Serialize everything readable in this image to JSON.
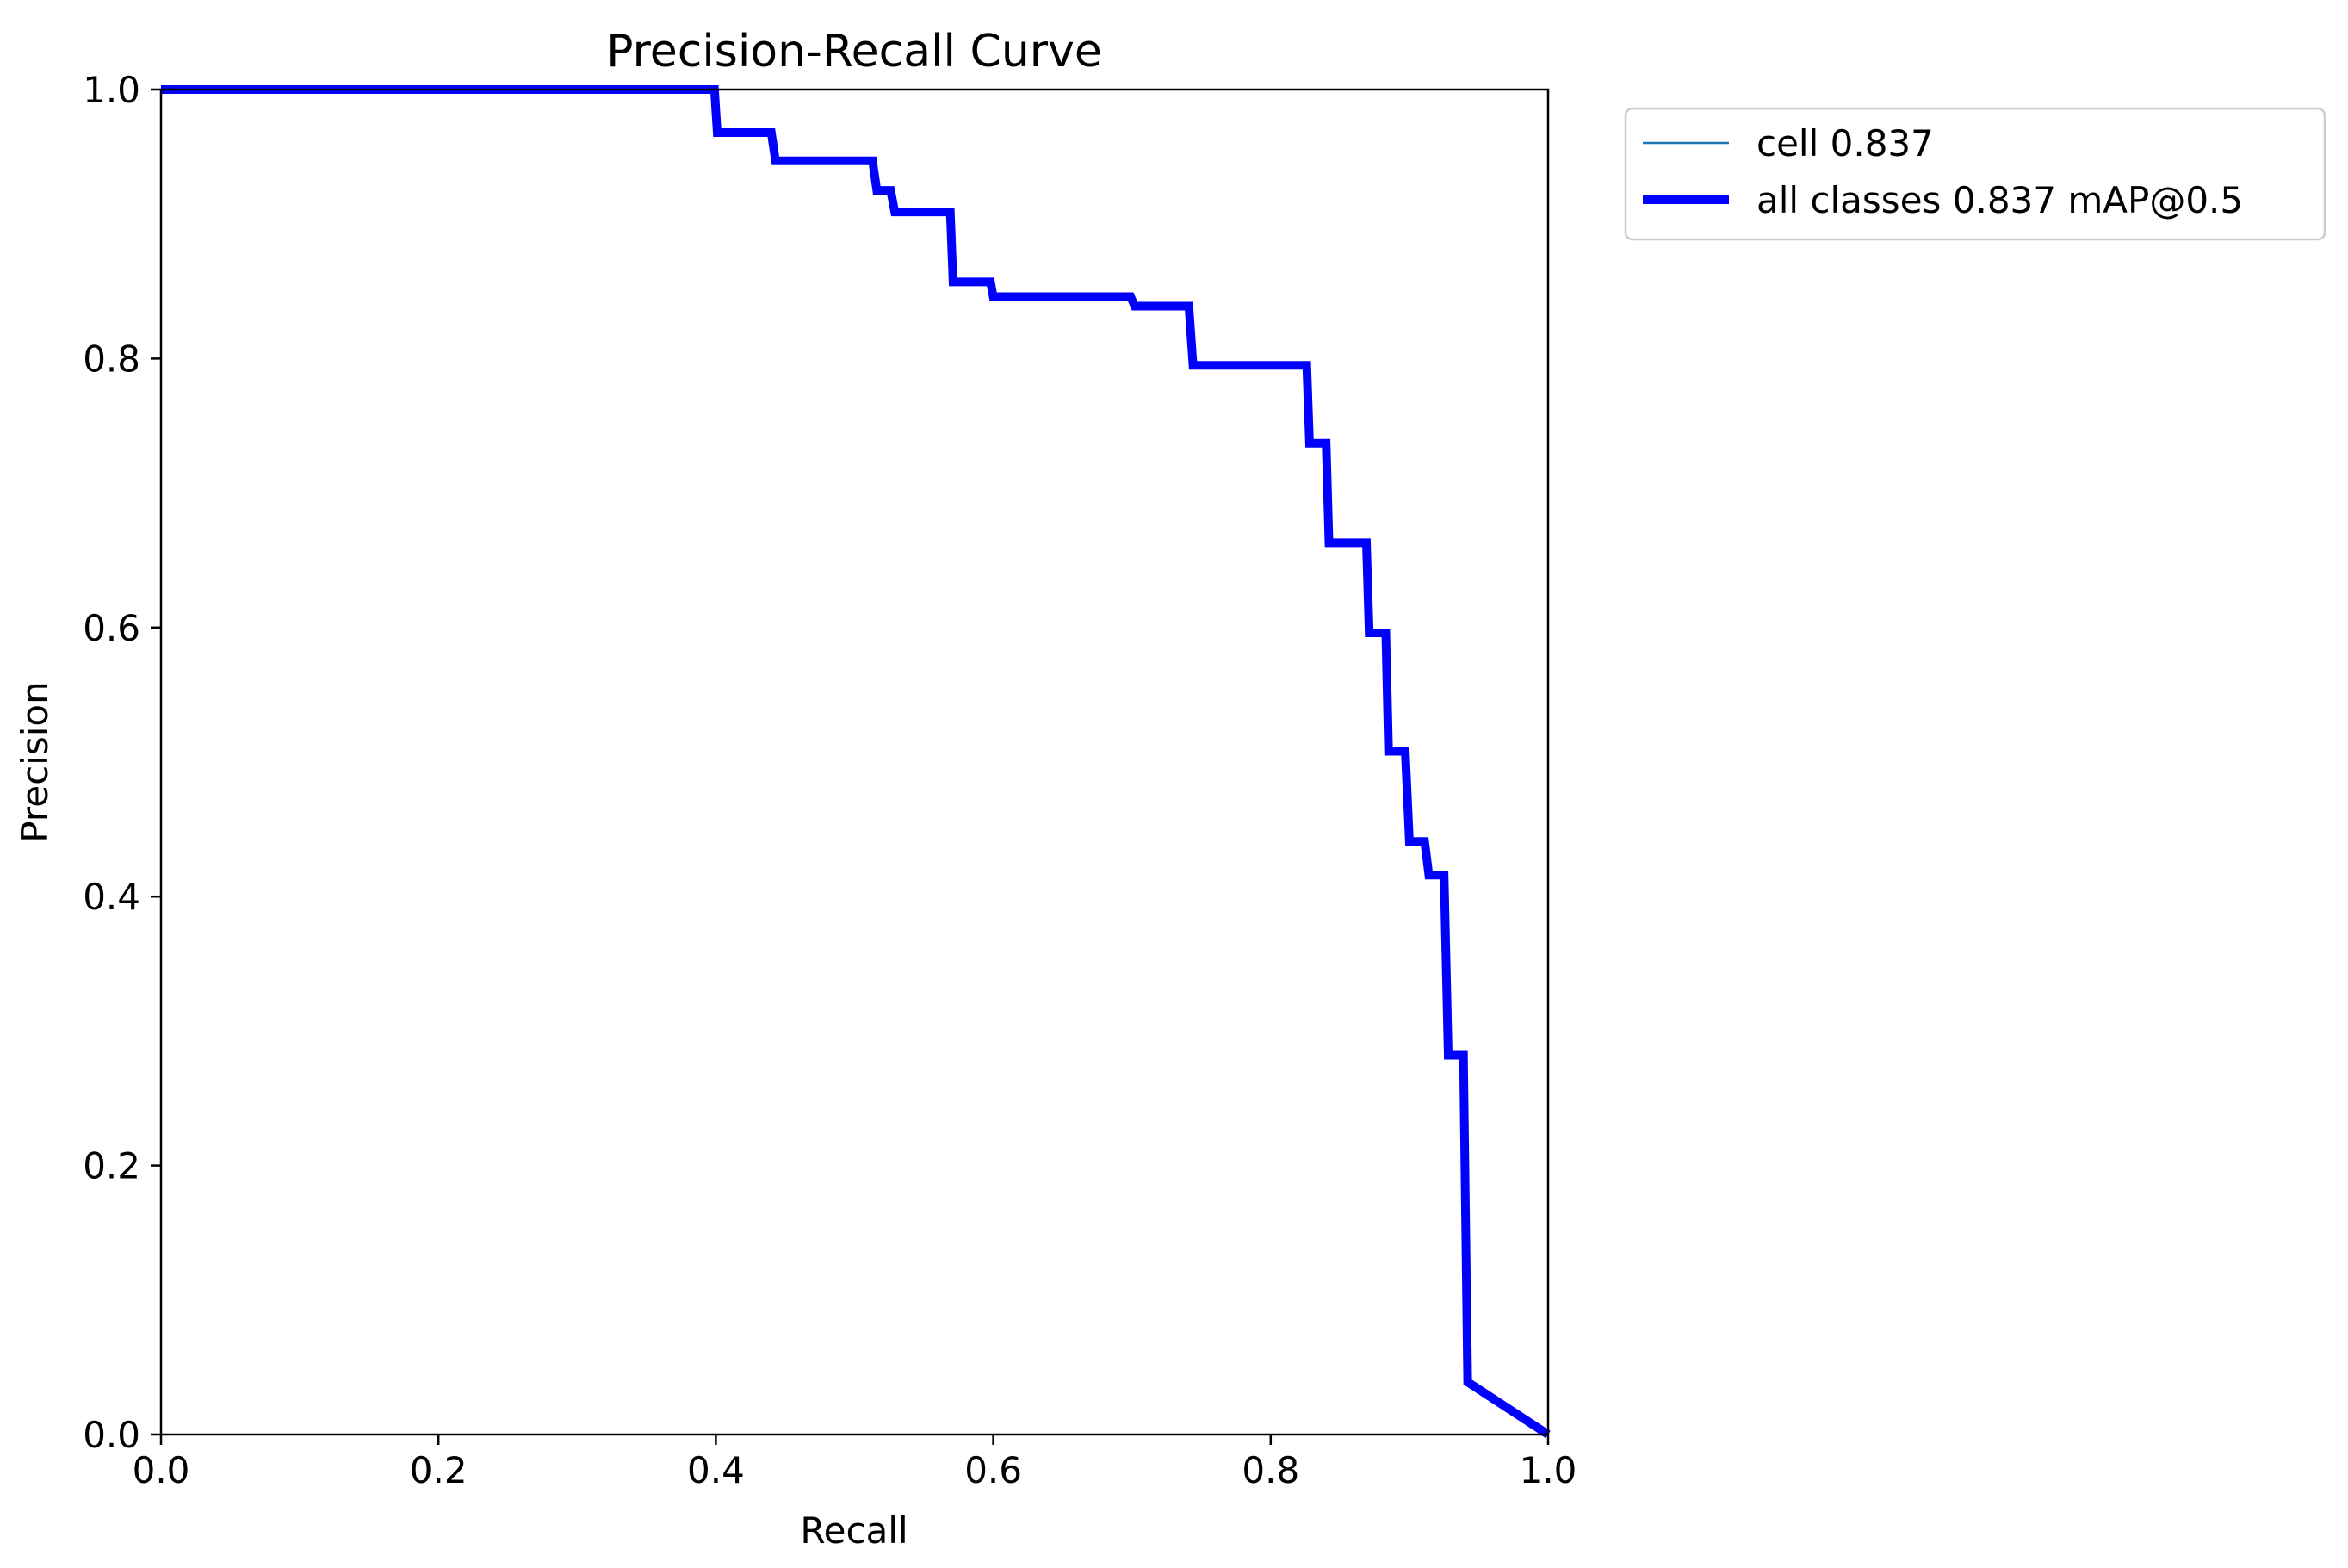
{
  "chart_data": {
    "type": "line",
    "title": "Precision-Recall Curve",
    "xlabel": "Recall",
    "ylabel": "Precision",
    "xlim": [
      0,
      1
    ],
    "ylim": [
      0,
      1
    ],
    "xticks": [
      "0.0",
      "0.2",
      "0.4",
      "0.6",
      "0.8",
      "1.0"
    ],
    "yticks": [
      "0.0",
      "0.2",
      "0.4",
      "0.6",
      "0.8",
      "1.0"
    ],
    "grid": false,
    "legend_position": "outside-top-right",
    "series": [
      {
        "name": "cell 0.837",
        "color": "#1f77b4",
        "style": "thin",
        "x": [
          0.0,
          0.399,
          0.401,
          0.44,
          0.443,
          0.513,
          0.516,
          0.526,
          0.529,
          0.569,
          0.571,
          0.598,
          0.6,
          0.699,
          0.702,
          0.741,
          0.744,
          0.826,
          0.828,
          0.84,
          0.842,
          0.869,
          0.871,
          0.883,
          0.885,
          0.897,
          0.9,
          0.911,
          0.914,
          0.925,
          0.928,
          0.939,
          0.942,
          1.0
        ],
        "y": [
          1.0,
          1.0,
          0.968,
          0.968,
          0.947,
          0.947,
          0.925,
          0.925,
          0.909,
          0.909,
          0.857,
          0.857,
          0.846,
          0.846,
          0.839,
          0.839,
          0.795,
          0.795,
          0.737,
          0.737,
          0.663,
          0.663,
          0.596,
          0.596,
          0.508,
          0.508,
          0.441,
          0.441,
          0.416,
          0.416,
          0.282,
          0.282,
          0.039,
          0.0
        ]
      },
      {
        "name": "all classes 0.837 mAP@0.5",
        "color": "#0000ff",
        "style": "thick",
        "x": [
          0.0,
          0.399,
          0.401,
          0.44,
          0.443,
          0.513,
          0.516,
          0.526,
          0.529,
          0.569,
          0.571,
          0.598,
          0.6,
          0.699,
          0.702,
          0.741,
          0.744,
          0.826,
          0.828,
          0.84,
          0.842,
          0.869,
          0.871,
          0.883,
          0.885,
          0.897,
          0.9,
          0.911,
          0.914,
          0.925,
          0.928,
          0.939,
          0.942,
          1.0
        ],
        "y": [
          1.0,
          1.0,
          0.968,
          0.968,
          0.947,
          0.947,
          0.925,
          0.925,
          0.909,
          0.909,
          0.857,
          0.857,
          0.846,
          0.846,
          0.839,
          0.839,
          0.795,
          0.795,
          0.737,
          0.737,
          0.663,
          0.663,
          0.596,
          0.596,
          0.508,
          0.508,
          0.441,
          0.441,
          0.416,
          0.416,
          0.282,
          0.282,
          0.039,
          0.0
        ]
      }
    ]
  }
}
